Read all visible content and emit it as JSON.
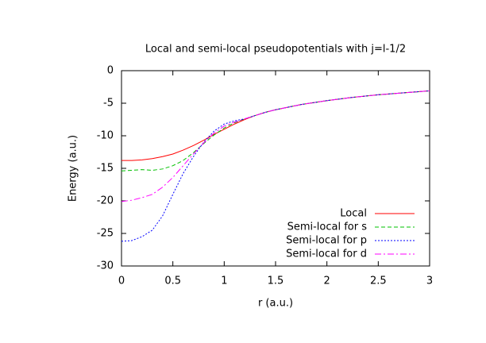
{
  "chart_data": {
    "type": "line",
    "title": "Local and semi-local pseudopotentials with j=l-1/2",
    "xlabel": "r (a.u.)",
    "ylabel": "Energy (a.u.)",
    "x": [
      0,
      0.1,
      0.2,
      0.3,
      0.4,
      0.5,
      0.6,
      0.7,
      0.8,
      0.9,
      1.0,
      1.1,
      1.2,
      1.3,
      1.4,
      1.5,
      1.75,
      2,
      2.25,
      2.5,
      2.75,
      3
    ],
    "series": [
      {
        "name": "Local",
        "color": "#ff0000",
        "dash": "none",
        "values": [
          -13.8,
          -13.8,
          -13.7,
          -13.5,
          -13.2,
          -12.8,
          -12.2,
          -11.5,
          -10.7,
          -9.8,
          -9.0,
          -8.2,
          -7.5,
          -6.9,
          -6.4,
          -6.0,
          -5.2,
          -4.6,
          -4.1,
          -3.7,
          -3.4,
          -3.1
        ]
      },
      {
        "name": "Semi-local for s",
        "color": "#00c000",
        "dash": "5,3",
        "values": [
          -15.4,
          -15.3,
          -15.2,
          -15.3,
          -15.1,
          -14.6,
          -13.8,
          -12.6,
          -11.2,
          -9.9,
          -8.8,
          -8.0,
          -7.4,
          -6.9,
          -6.4,
          -6.0,
          -5.2,
          -4.6,
          -4.1,
          -3.7,
          -3.4,
          -3.1
        ]
      },
      {
        "name": "Semi-local for p",
        "color": "#0000ff",
        "dash": "2,2",
        "values": [
          -26.2,
          -26.1,
          -25.5,
          -24.5,
          -22.3,
          -19.0,
          -15.8,
          -13.2,
          -11.0,
          -9.3,
          -8.2,
          -7.7,
          -7.4,
          -6.9,
          -6.4,
          -6.0,
          -5.2,
          -4.6,
          -4.1,
          -3.7,
          -3.4,
          -3.1
        ]
      },
      {
        "name": "Semi-local for d",
        "color": "#ff00ff",
        "dash": "8,3,2,3",
        "values": [
          -20.1,
          -19.9,
          -19.5,
          -19.0,
          -17.9,
          -16.4,
          -14.6,
          -12.8,
          -11.1,
          -9.6,
          -8.5,
          -7.9,
          -7.4,
          -6.9,
          -6.4,
          -6.0,
          -5.2,
          -4.6,
          -4.1,
          -3.7,
          -3.4,
          -3.1
        ]
      }
    ],
    "xlim": [
      0,
      3
    ],
    "xticks": [
      0,
      0.5,
      1,
      1.5,
      2,
      2.5,
      3
    ],
    "ylim": [
      -30,
      0
    ],
    "yticks": [
      0,
      -5,
      -10,
      -15,
      -20,
      -25,
      -30
    ],
    "legend": "bottom-right"
  }
}
